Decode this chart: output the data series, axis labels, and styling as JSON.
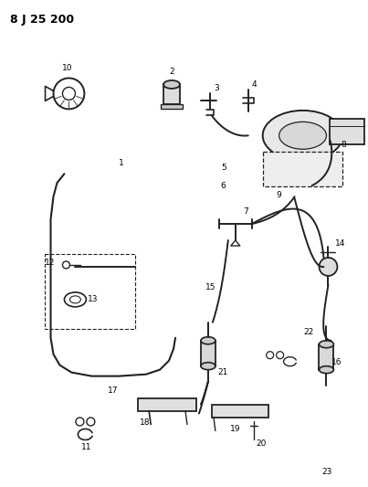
{
  "title": "8 J 25 200",
  "bg": "#ffffff",
  "lc": "#222222",
  "fig_w": 4.03,
  "fig_h": 5.33,
  "dpi": 100
}
